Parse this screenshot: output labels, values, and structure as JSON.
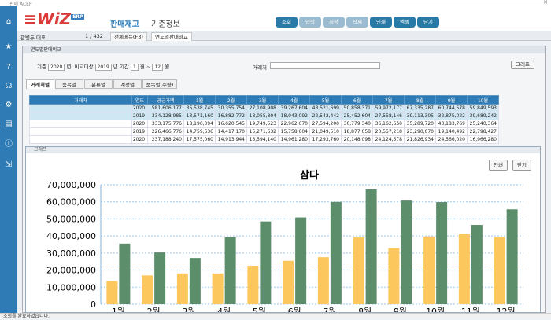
{
  "app": {
    "title_bar": "판매 ACEP",
    "status": "조회를 완료하였습니다."
  },
  "logo": {
    "main": "WiZ",
    "badge": "ERP"
  },
  "top_menu": {
    "primary": "판매재고",
    "secondary": "기준정보"
  },
  "toolbar": [
    {
      "label": "조회",
      "enabled": true
    },
    {
      "label": "입력",
      "enabled": false
    },
    {
      "label": "저장",
      "enabled": false
    },
    {
      "label": "삭제",
      "enabled": false
    },
    {
      "label": "인쇄",
      "enabled": true
    },
    {
      "label": "엑셀",
      "enabled": true
    },
    {
      "label": "닫기",
      "enabled": true
    }
  ],
  "tabs_bar": {
    "left_label": "관병두 대표",
    "page": "1 / 432",
    "tabs": [
      "전체메뉴(F3)",
      "연도별판매비교"
    ]
  },
  "window": {
    "title": "연도별판매비교"
  },
  "filters": {
    "base_label": "기준",
    "base_year": "2020",
    "year_unit": "년",
    "compare_label": "비교대상",
    "compare_year": "2019",
    "period_label": "기간",
    "month_from": "1",
    "month_to": "12",
    "month_unit": "월",
    "customer_label": "거래처",
    "graph_button": "그래프"
  },
  "grid_tabs": [
    "거래처별",
    "품목별",
    "분류별",
    "계정별",
    "품목별(수량)"
  ],
  "table": {
    "headers": [
      "거래처",
      "연도",
      "공급가액",
      "1월",
      "2월",
      "3월",
      "4월",
      "5월",
      "6월",
      "7월",
      "8월",
      "9월",
      "10월"
    ],
    "rows": [
      [
        "",
        "2020",
        "581,606,177",
        "35,538,745",
        "30,355,754",
        "27,108,908",
        "39,267,604",
        "48,521,699",
        "50,858,371",
        "59,972,177",
        "67,335,287",
        "60,744,578",
        "59,849,593"
      ],
      [
        "",
        "2019",
        "334,128,985",
        "13,571,160",
        "16,882,772",
        "18,055,804",
        "18,043,092",
        "22,542,442",
        "25,452,604",
        "27,558,146",
        "39,113,305",
        "32,875,022",
        "39,689,242"
      ],
      [
        "",
        "2020",
        "333,175,776",
        "18,190,094",
        "16,620,545",
        "19,749,523",
        "22,962,670",
        "27,594,200",
        "30,779,340",
        "36,162,650",
        "35,289,720",
        "43,183,769",
        "25,240,364"
      ],
      [
        "",
        "2019",
        "226,466,776",
        "14,759,636",
        "14,417,170",
        "15,271,632",
        "15,758,604",
        "21,049,510",
        "18,877,058",
        "20,557,218",
        "23,290,070",
        "19,140,492",
        "22,798,427"
      ],
      [
        "",
        "2020",
        "237,188,240",
        "17,575,060",
        "14,913,944",
        "13,594,140",
        "14,961,280",
        "17,293,760",
        "20,148,098",
        "24,124,578",
        "21,826,934",
        "24,566,020",
        "16,966,280"
      ]
    ]
  },
  "chart_window": {
    "title": "그래프",
    "print_button": "인쇄",
    "close_button": "닫기"
  },
  "colors": {
    "series_2019": "#fcc75c",
    "series_2020": "#5d8e6b",
    "accent": "#2e7bb5"
  },
  "chart_data": {
    "type": "bar",
    "title": "삼다",
    "categories": [
      "1월",
      "2월",
      "3월",
      "4월",
      "5월",
      "6월",
      "7월",
      "8월",
      "9월",
      "10월",
      "11월",
      "12월"
    ],
    "series": [
      {
        "name": "",
        "values": [
          13571160,
          16882772,
          18055804,
          18043092,
          22542442,
          25452604,
          27558146,
          39113305,
          32875022,
          39689242,
          41000000,
          39300000
        ]
      },
      {
        "name": "",
        "values": [
          35538745,
          30355754,
          27108908,
          39267604,
          48521699,
          50858371,
          59972177,
          67335287,
          60744578,
          59849593,
          46500000,
          55600000
        ]
      }
    ],
    "ylim": [
      0,
      70000000
    ],
    "yticks": [
      "70,000,000",
      "60,000,000",
      "50,000,000",
      "40,000,000",
      "30,000,000",
      "20,000,000",
      "10,000,000",
      "0"
    ],
    "grid": true
  }
}
